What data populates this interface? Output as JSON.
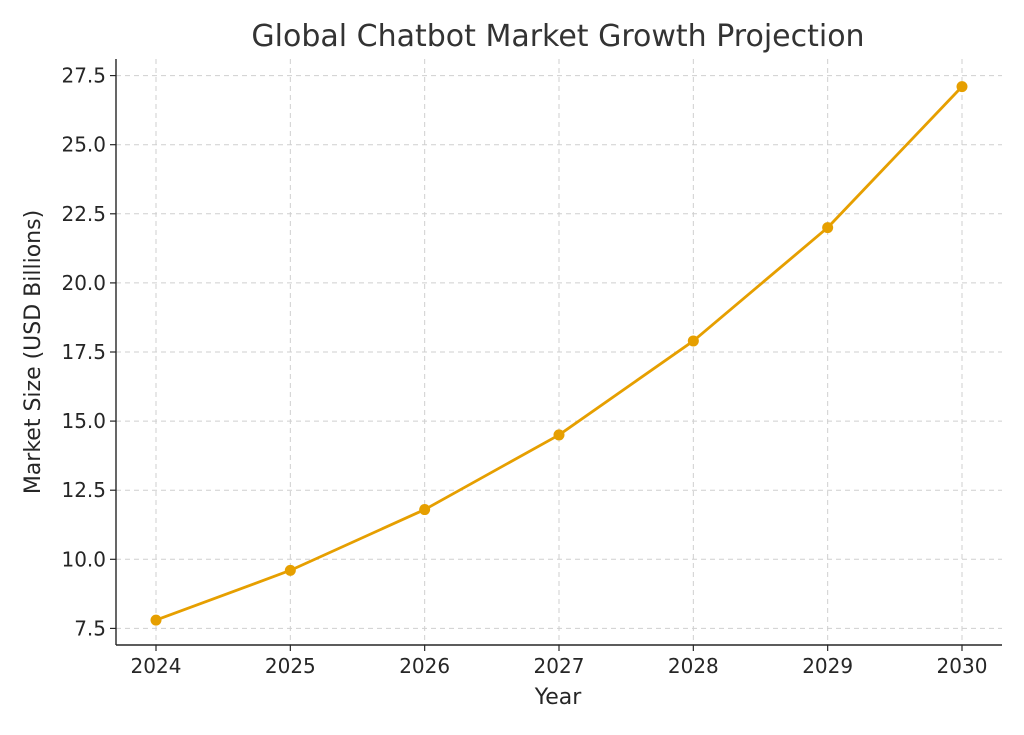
{
  "chart_data": {
    "type": "line",
    "title": "Global Chatbot Market Growth Projection",
    "xlabel": "Year",
    "ylabel": "Market Size (USD Billions)",
    "x": [
      "2024",
      "2025",
      "2026",
      "2027",
      "2028",
      "2029",
      "2030"
    ],
    "series": [
      {
        "values": [
          7.8,
          9.6,
          11.8,
          14.5,
          17.9,
          22.0,
          27.1
        ],
        "color": "#E69F00"
      }
    ],
    "ylim": [
      6.9,
      28.1
    ],
    "y_ticks": [
      "7.5",
      "10.0",
      "12.5",
      "15.0",
      "17.5",
      "20.0",
      "22.5",
      "25.0",
      "27.5"
    ],
    "grid": true,
    "grid_style": "dashed",
    "marker": "circle"
  }
}
